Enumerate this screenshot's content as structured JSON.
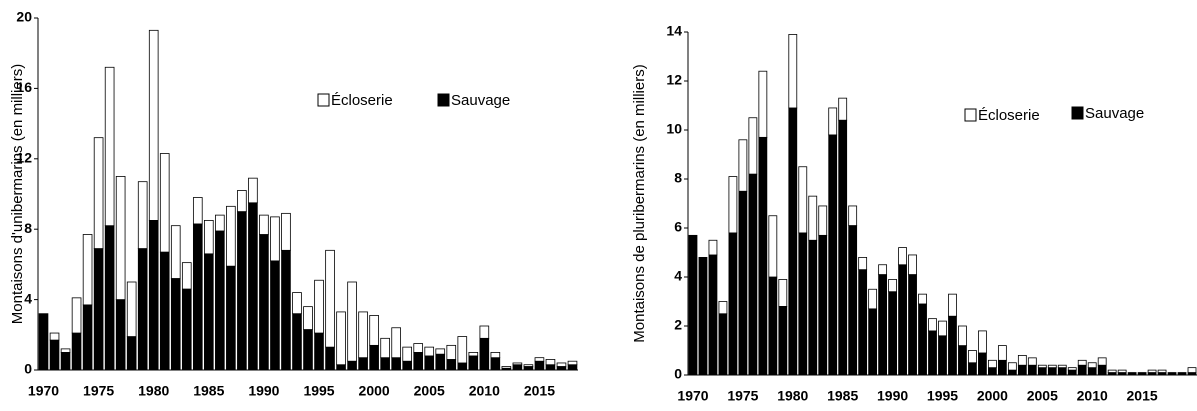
{
  "chart_data": [
    {
      "type": "bar",
      "stacked": true,
      "ylabel": "Montaisons d'unibermarins (en milliers)",
      "categories": [
        1970,
        null,
        null,
        null,
        null,
        1975,
        null,
        null,
        null,
        null,
        1980,
        null,
        null,
        null,
        null,
        1985,
        null,
        null,
        null,
        null,
        1990,
        null,
        null,
        null,
        null,
        1995,
        null,
        null,
        null,
        null,
        2000,
        null,
        null,
        null,
        null,
        2005,
        null,
        null,
        null,
        null,
        2010,
        null,
        null,
        null,
        null,
        2015,
        null,
        null,
        null
      ],
      "series": [
        {
          "name": "Sauvage",
          "color": "#000000",
          "values": [
            3.2,
            1.7,
            1.0,
            2.1,
            3.7,
            6.9,
            8.2,
            4.0,
            1.9,
            6.9,
            8.5,
            6.7,
            5.2,
            4.6,
            8.3,
            6.6,
            7.9,
            5.9,
            9.0,
            9.5,
            7.7,
            6.2,
            6.8,
            3.2,
            2.3,
            2.1,
            1.3,
            0.3,
            0.5,
            0.7,
            1.4,
            0.7,
            0.7,
            0.5,
            1.0,
            0.8,
            0.9,
            0.6,
            0.4,
            0.8,
            1.8,
            0.7,
            0.1,
            0.3,
            0.2,
            0.5,
            0.3,
            0.2,
            0.3
          ]
        },
        {
          "name": "Écloserie",
          "color": "#ffffff",
          "values": [
            0,
            0.4,
            0.2,
            2.0,
            4.0,
            6.3,
            9.0,
            7.0,
            3.1,
            3.8,
            10.8,
            5.6,
            3.0,
            1.5,
            1.5,
            1.9,
            0.9,
            3.4,
            1.2,
            1.4,
            1.1,
            2.5,
            2.1,
            1.2,
            1.3,
            3.0,
            5.5,
            3.0,
            4.5,
            2.6,
            1.7,
            1.1,
            1.7,
            0.8,
            0.5,
            0.5,
            0.3,
            0.8,
            1.5,
            0.2,
            0.7,
            0.3,
            0.1,
            0.1,
            0.1,
            0.2,
            0.3,
            0.2,
            0.2
          ]
        }
      ],
      "ylim": [
        0,
        20
      ],
      "yticks": [
        0,
        4,
        8,
        12,
        16,
        20
      ]
    },
    {
      "type": "bar",
      "stacked": true,
      "ylabel": "Montaisons de pluribermarins (en milliers)",
      "categories": [
        1970,
        null,
        null,
        null,
        null,
        1975,
        null,
        null,
        null,
        null,
        1980,
        null,
        null,
        null,
        null,
        1985,
        null,
        null,
        null,
        null,
        1990,
        null,
        null,
        null,
        null,
        1995,
        null,
        null,
        null,
        null,
        2000,
        null,
        null,
        null,
        null,
        2005,
        null,
        null,
        null,
        null,
        2010,
        null,
        null,
        null,
        null,
        2015,
        null,
        null,
        null,
        null,
        null
      ],
      "series": [
        {
          "name": "Sauvage",
          "color": "#000000",
          "values": [
            5.7,
            4.8,
            4.9,
            2.5,
            5.8,
            7.5,
            8.2,
            9.7,
            4.0,
            2.8,
            10.9,
            5.8,
            5.5,
            5.7,
            9.8,
            10.4,
            6.1,
            4.3,
            2.7,
            4.1,
            3.4,
            4.5,
            4.1,
            2.9,
            1.8,
            1.6,
            2.4,
            1.2,
            0.5,
            0.9,
            0.3,
            0.6,
            0.2,
            0.4,
            0.4,
            0.3,
            0.3,
            0.3,
            0.2,
            0.4,
            0.3,
            0.4,
            0.1,
            0.1,
            0.1,
            0.1,
            0.1,
            0.1,
            0.1,
            0.1,
            0.1
          ]
        },
        {
          "name": "Écloserie",
          "color": "#ffffff",
          "values": [
            0,
            0,
            0.6,
            0.5,
            2.3,
            2.1,
            2.3,
            2.7,
            2.5,
            1.1,
            3.0,
            2.7,
            1.8,
            1.2,
            1.1,
            0.9,
            0.8,
            0.5,
            0.8,
            0.4,
            0.5,
            0.7,
            0.8,
            0.4,
            0.5,
            0.6,
            0.9,
            0.8,
            0.5,
            0.9,
            0.3,
            0.6,
            0.3,
            0.4,
            0.3,
            0.1,
            0.1,
            0.1,
            0.1,
            0.2,
            0.2,
            0.3,
            0.1,
            0.1,
            0,
            0,
            0.1,
            0.1,
            0,
            0,
            0.2
          ]
        }
      ],
      "ylim": [
        0,
        14
      ],
      "yticks": [
        0,
        2,
        4,
        6,
        8,
        10,
        12,
        14
      ]
    }
  ]
}
